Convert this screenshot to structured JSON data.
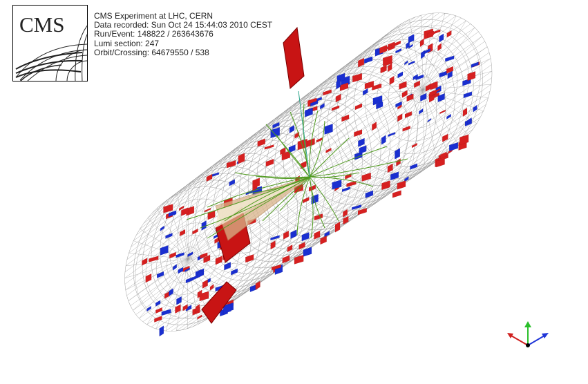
{
  "logo": {
    "text": "CMS"
  },
  "event_info": {
    "experiment": "CMS Experiment at LHC, CERN",
    "recorded": "Data recorded: Sun Oct 24 15:44:03 2010 CEST",
    "run_event": "Run/Event: 148822 / 263643676",
    "lumi_section": "Lumi section: 247",
    "orbit_crossing": "Orbit/Crossing: 64679550 / 538"
  },
  "colors": {
    "ecal": "#d62020",
    "hcal": "#1a2fd0",
    "tracks": "#4f9a1e",
    "jet": "#d9b48a",
    "mesh": "#9a9a9a",
    "axis_x": "#d0201f",
    "axis_y": "#2bbf2b",
    "axis_z": "#2036d8"
  },
  "axes_icons": [
    "x-axis-icon",
    "y-axis-icon",
    "z-axis-icon"
  ]
}
